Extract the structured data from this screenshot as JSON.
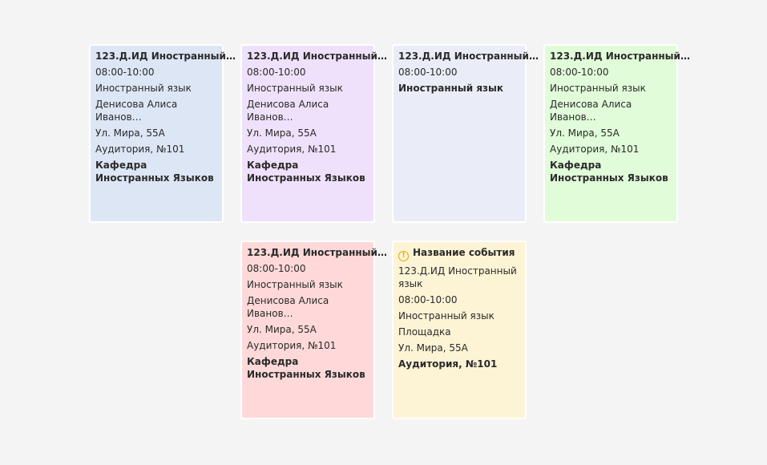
{
  "cards": [
    {
      "color": "#dde6f5",
      "lines": [
        {
          "text": "123.Д.ИД Иностранный…",
          "bold": true
        },
        {
          "text": "08:00-10:00"
        },
        {
          "text": "Иностранный язык"
        },
        {
          "text": "Денисова Алиса Иванов…"
        },
        {
          "text": "Ул. Мира, 55А"
        },
        {
          "text": "Аудитория, №101"
        },
        {
          "text": "Кафедра Иностранных Языков",
          "bold": true
        }
      ]
    },
    {
      "color": "#efe1fb",
      "lines": [
        {
          "text": "123.Д.ИД Иностранный…",
          "bold": true
        },
        {
          "text": "08:00-10:00"
        },
        {
          "text": "Иностранный язык"
        },
        {
          "text": "Денисова Алиса Иванов…"
        },
        {
          "text": "Ул. Мира, 55А"
        },
        {
          "text": "Аудитория, №101"
        },
        {
          "text": "Кафедра Иностранных Языков",
          "bold": true
        }
      ]
    },
    {
      "color": "#eaedf7",
      "lines": [
        {
          "text": "123.Д.ИД Иностранный…",
          "bold": true
        },
        {
          "text": "08:00-10:00"
        },
        {
          "text": "Иностранный язык",
          "bold": true
        }
      ]
    },
    {
      "color": "#e1fcd9",
      "lines": [
        {
          "text": "123.Д.ИД Иностранный…",
          "bold": true
        },
        {
          "text": "08:00-10:00"
        },
        {
          "text": "Иностранный язык"
        },
        {
          "text": "Денисова Алиса Иванов…"
        },
        {
          "text": "Ул. Мира, 55А"
        },
        {
          "text": "Аудитория, №101"
        },
        {
          "text": "Кафедра Иностранных Языков",
          "bold": true
        }
      ]
    },
    {
      "color": "#ffd9d9",
      "lines": [
        {
          "text": "123.Д.ИД Иностранный…",
          "bold": true
        },
        {
          "text": "08:00-10:00"
        },
        {
          "text": "Иностранный язык"
        },
        {
          "text": "Денисова Алиса Иванов…"
        },
        {
          "text": "Ул. Мира, 55А"
        },
        {
          "text": "Аудитория, №101"
        },
        {
          "text": "Кафедра Иностранных Языков",
          "bold": true
        }
      ]
    },
    {
      "color": "#fdf4d6",
      "warning": true,
      "lines": [
        {
          "text": "Название события",
          "bold": true
        },
        {
          "text": "123.Д.ИД Иностранный язык"
        },
        {
          "text": "08:00-10:00"
        },
        {
          "text": "Иностранный язык"
        },
        {
          "text": "Площадка"
        },
        {
          "text": "Ул. Мира, 55А"
        },
        {
          "text": "Аудитория, №101",
          "bold": true
        }
      ]
    }
  ]
}
